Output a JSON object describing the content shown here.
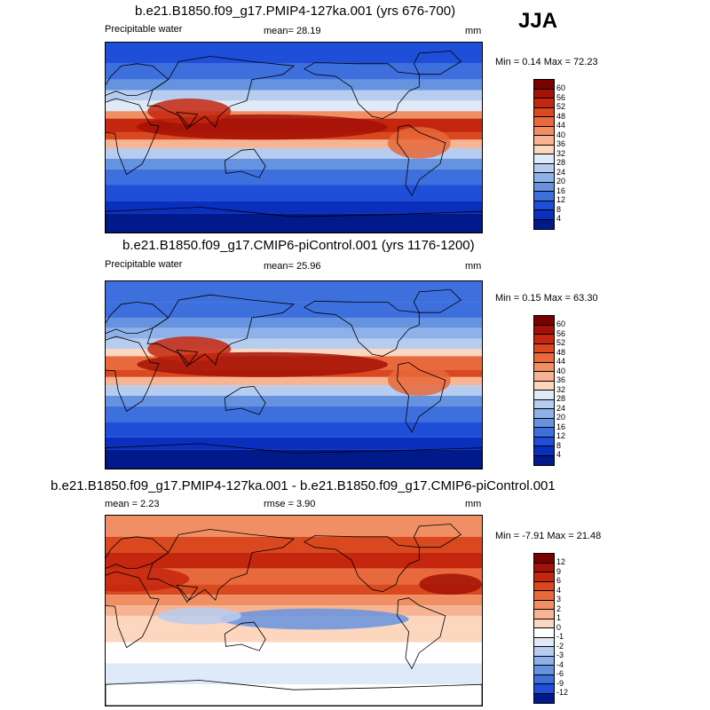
{
  "season": "JJA",
  "panels": [
    {
      "title": "b.e21.B1850.f09_g17.PMIP4-127ka.001 (yrs 676-700)",
      "left_label": "Precipitable water",
      "mean_text": "mean=  28.19",
      "units": "mm",
      "minmax_text": "Min =  0.14 Max =  72.23",
      "colorbar_labels": [
        "60",
        "56",
        "52",
        "48",
        "44",
        "40",
        "36",
        "32",
        "28",
        "24",
        "20",
        "16",
        "12",
        "8",
        "4"
      ]
    },
    {
      "title": "b.e21.B1850.f09_g17.CMIP6-piControl.001 (yrs 1176-1200)",
      "left_label": "Precipitable water",
      "mean_text": "mean=  25.96",
      "units": "mm",
      "minmax_text": "Min =  0.15 Max =  63.30",
      "colorbar_labels": [
        "60",
        "56",
        "52",
        "48",
        "44",
        "40",
        "36",
        "32",
        "28",
        "24",
        "20",
        "16",
        "12",
        "8",
        "4"
      ]
    },
    {
      "title": "b.e21.B1850.f09_g17.PMIP4-127ka.001 - b.e21.B1850.f09_g17.CMIP6-piControl.001",
      "left_label": "mean =   2.23",
      "mean_text": "rmse =   3.90",
      "units": "mm",
      "minmax_text": "Min =  -7.91 Max =  21.48",
      "colorbar_labels": [
        "12",
        "9",
        "6",
        "4",
        "3",
        "2",
        "1",
        "0",
        "-1",
        "-2",
        "-3",
        "-4",
        "-6",
        "-9",
        "-12"
      ]
    }
  ],
  "colors": {
    "abs_scale": [
      "#7a0000",
      "#a31206",
      "#c4260e",
      "#d9481f",
      "#e8693b",
      "#f08f63",
      "#f6b493",
      "#fcd6bd",
      "#dfe9f7",
      "#b7cdf0",
      "#8eb1ea",
      "#6693e0",
      "#3e70dd",
      "#1f4ed8",
      "#0a2fbf",
      "#001a8c"
    ],
    "diff_scale": [
      "#7a0000",
      "#a31206",
      "#c4260e",
      "#d9481f",
      "#e8693b",
      "#f08f63",
      "#f6b493",
      "#fcd6bd",
      "#ffffff",
      "#dfe9f7",
      "#b7cdf0",
      "#8eb1ea",
      "#6693e0",
      "#3e70dd",
      "#1f4ed8",
      "#001a8c"
    ]
  }
}
